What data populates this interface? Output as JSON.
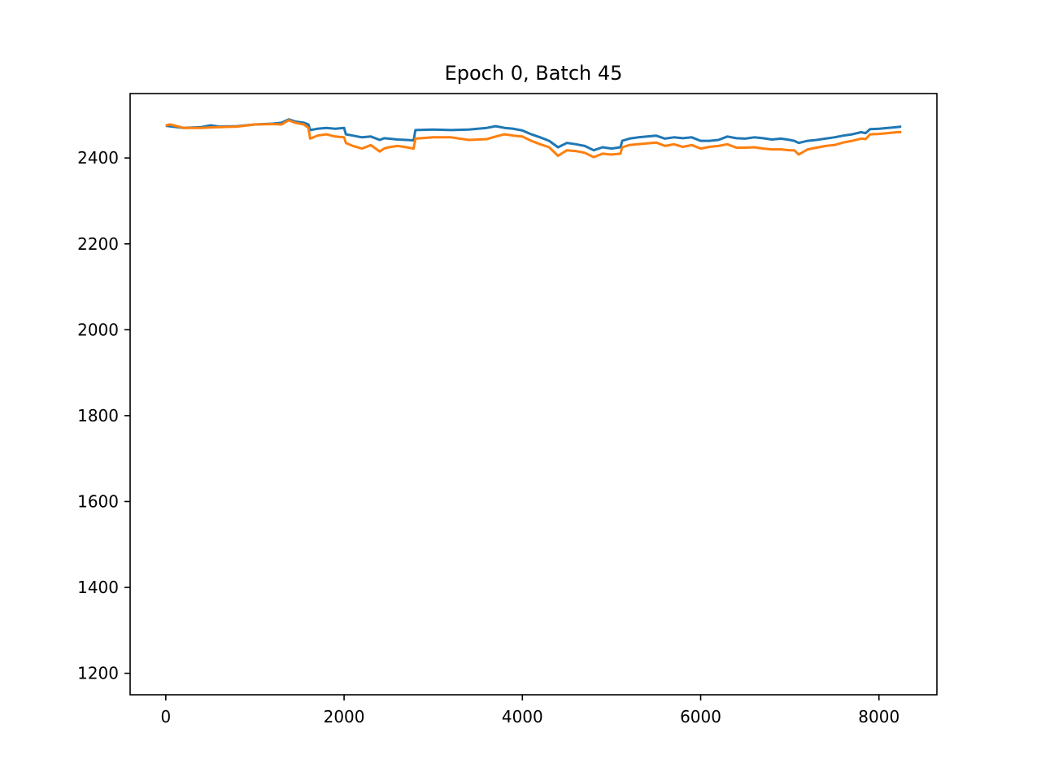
{
  "chart_data": {
    "type": "line",
    "title": "Epoch 0, Batch 45",
    "xlabel": "",
    "ylabel": "",
    "xlim": [
      -400,
      8650
    ],
    "ylim": [
      1150,
      2550
    ],
    "x_ticks": [
      0,
      2000,
      4000,
      6000,
      8000
    ],
    "y_ticks": [
      1200,
      1400,
      1600,
      1800,
      2000,
      2200,
      2400
    ],
    "grid": false,
    "legend": "none",
    "series": [
      {
        "color": "#1f77b4",
        "x": [
          0,
          200,
          400,
          500,
          600,
          800,
          1000,
          1200,
          1300,
          1380,
          1450,
          1550,
          1600,
          1620,
          1700,
          1800,
          1900,
          2000,
          2020,
          2100,
          2200,
          2300,
          2400,
          2450,
          2500,
          2600,
          2700,
          2780,
          2800,
          3000,
          3200,
          3400,
          3600,
          3700,
          3800,
          3900,
          4000,
          4100,
          4200,
          4300,
          4400,
          4500,
          4600,
          4700,
          4800,
          4900,
          5000,
          5100,
          5120,
          5200,
          5300,
          5400,
          5500,
          5600,
          5700,
          5800,
          5900,
          6000,
          6100,
          6200,
          6300,
          6400,
          6500,
          6600,
          6700,
          6800,
          6900,
          7000,
          7050,
          7100,
          7200,
          7300,
          7400,
          7500,
          7600,
          7700,
          7800,
          7850,
          7900,
          8000,
          8100,
          8200,
          8250
        ],
        "y": [
          2475,
          2470,
          2472,
          2476,
          2473,
          2474,
          2478,
          2480,
          2482,
          2490,
          2485,
          2482,
          2478,
          2465,
          2468,
          2470,
          2468,
          2470,
          2455,
          2452,
          2448,
          2450,
          2442,
          2446,
          2445,
          2443,
          2442,
          2441,
          2465,
          2466,
          2465,
          2466,
          2470,
          2474,
          2470,
          2468,
          2464,
          2455,
          2448,
          2440,
          2425,
          2435,
          2432,
          2428,
          2418,
          2425,
          2422,
          2425,
          2440,
          2445,
          2448,
          2450,
          2452,
          2445,
          2448,
          2446,
          2448,
          2440,
          2440,
          2442,
          2450,
          2446,
          2445,
          2448,
          2446,
          2443,
          2445,
          2442,
          2440,
          2435,
          2440,
          2442,
          2445,
          2448,
          2452,
          2455,
          2460,
          2458,
          2467,
          2468,
          2470,
          2472,
          2473
        ]
      },
      {
        "color": "#ff7f0e",
        "x": [
          0,
          50,
          200,
          400,
          600,
          800,
          1000,
          1200,
          1300,
          1380,
          1450,
          1550,
          1600,
          1620,
          1700,
          1800,
          1900,
          2000,
          2020,
          2100,
          2200,
          2300,
          2400,
          2450,
          2500,
          2600,
          2700,
          2780,
          2800,
          3000,
          3200,
          3400,
          3600,
          3700,
          3800,
          3900,
          4000,
          4100,
          4200,
          4300,
          4400,
          4500,
          4600,
          4700,
          4800,
          4900,
          5000,
          5100,
          5120,
          5200,
          5300,
          5400,
          5500,
          5600,
          5700,
          5800,
          5900,
          6000,
          6100,
          6200,
          6300,
          6400,
          6500,
          6600,
          6700,
          6800,
          6900,
          7000,
          7050,
          7100,
          7200,
          7300,
          7400,
          7500,
          7600,
          7700,
          7800,
          7850,
          7900,
          8000,
          8100,
          8200,
          8250
        ],
        "y": [
          2476,
          2478,
          2470,
          2470,
          2472,
          2473,
          2478,
          2479,
          2478,
          2488,
          2482,
          2478,
          2470,
          2445,
          2452,
          2455,
          2450,
          2448,
          2435,
          2428,
          2422,
          2430,
          2415,
          2422,
          2425,
          2428,
          2425,
          2422,
          2445,
          2448,
          2448,
          2442,
          2444,
          2450,
          2455,
          2452,
          2450,
          2440,
          2432,
          2425,
          2405,
          2418,
          2416,
          2412,
          2402,
          2410,
          2408,
          2410,
          2425,
          2430,
          2432,
          2434,
          2436,
          2428,
          2432,
          2426,
          2430,
          2422,
          2426,
          2428,
          2432,
          2424,
          2424,
          2425,
          2422,
          2420,
          2420,
          2418,
          2418,
          2408,
          2420,
          2424,
          2428,
          2430,
          2436,
          2440,
          2445,
          2444,
          2455,
          2456,
          2458,
          2460,
          2460
        ]
      }
    ]
  }
}
